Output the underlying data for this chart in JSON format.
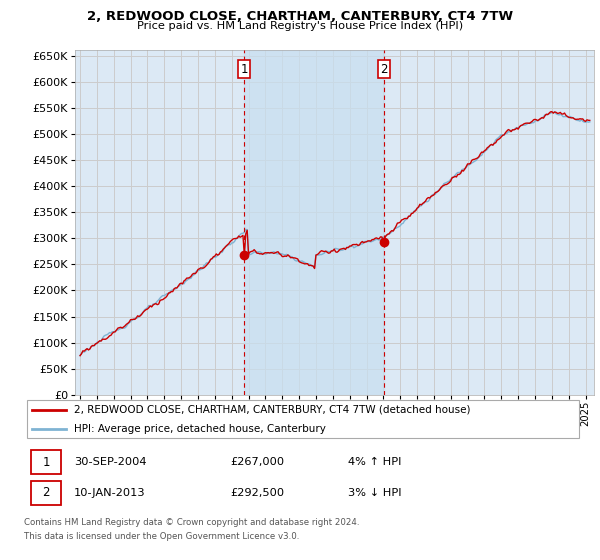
{
  "title": "2, REDWOOD CLOSE, CHARTHAM, CANTERBURY, CT4 7TW",
  "subtitle": "Price paid vs. HM Land Registry's House Price Index (HPI)",
  "red_label": "2, REDWOOD CLOSE, CHARTHAM, CANTERBURY, CT4 7TW (detached house)",
  "blue_label": "HPI: Average price, detached house, Canterbury",
  "sale1_date": "30-SEP-2004",
  "sale1_price": "£267,000",
  "sale1_hpi": "4% ↑ HPI",
  "sale2_date": "10-JAN-2013",
  "sale2_price": "£292,500",
  "sale2_hpi": "3% ↓ HPI",
  "footnote1": "Contains HM Land Registry data © Crown copyright and database right 2024.",
  "footnote2": "This data is licensed under the Open Government Licence v3.0.",
  "ylim": [
    0,
    660000
  ],
  "yticks": [
    0,
    50000,
    100000,
    150000,
    200000,
    250000,
    300000,
    350000,
    400000,
    450000,
    500000,
    550000,
    600000,
    650000
  ],
  "xlim_start": 1994.7,
  "xlim_end": 2025.5,
  "background_color": "#ffffff",
  "grid_color": "#cccccc",
  "plot_bg_color": "#dce9f5",
  "shade_color": "#c8dff0",
  "red_color": "#cc0000",
  "blue_color": "#7fb3d3",
  "sale1_x": 2004.75,
  "sale2_x": 2013.03,
  "sale1_y": 267000,
  "sale2_y": 292500
}
